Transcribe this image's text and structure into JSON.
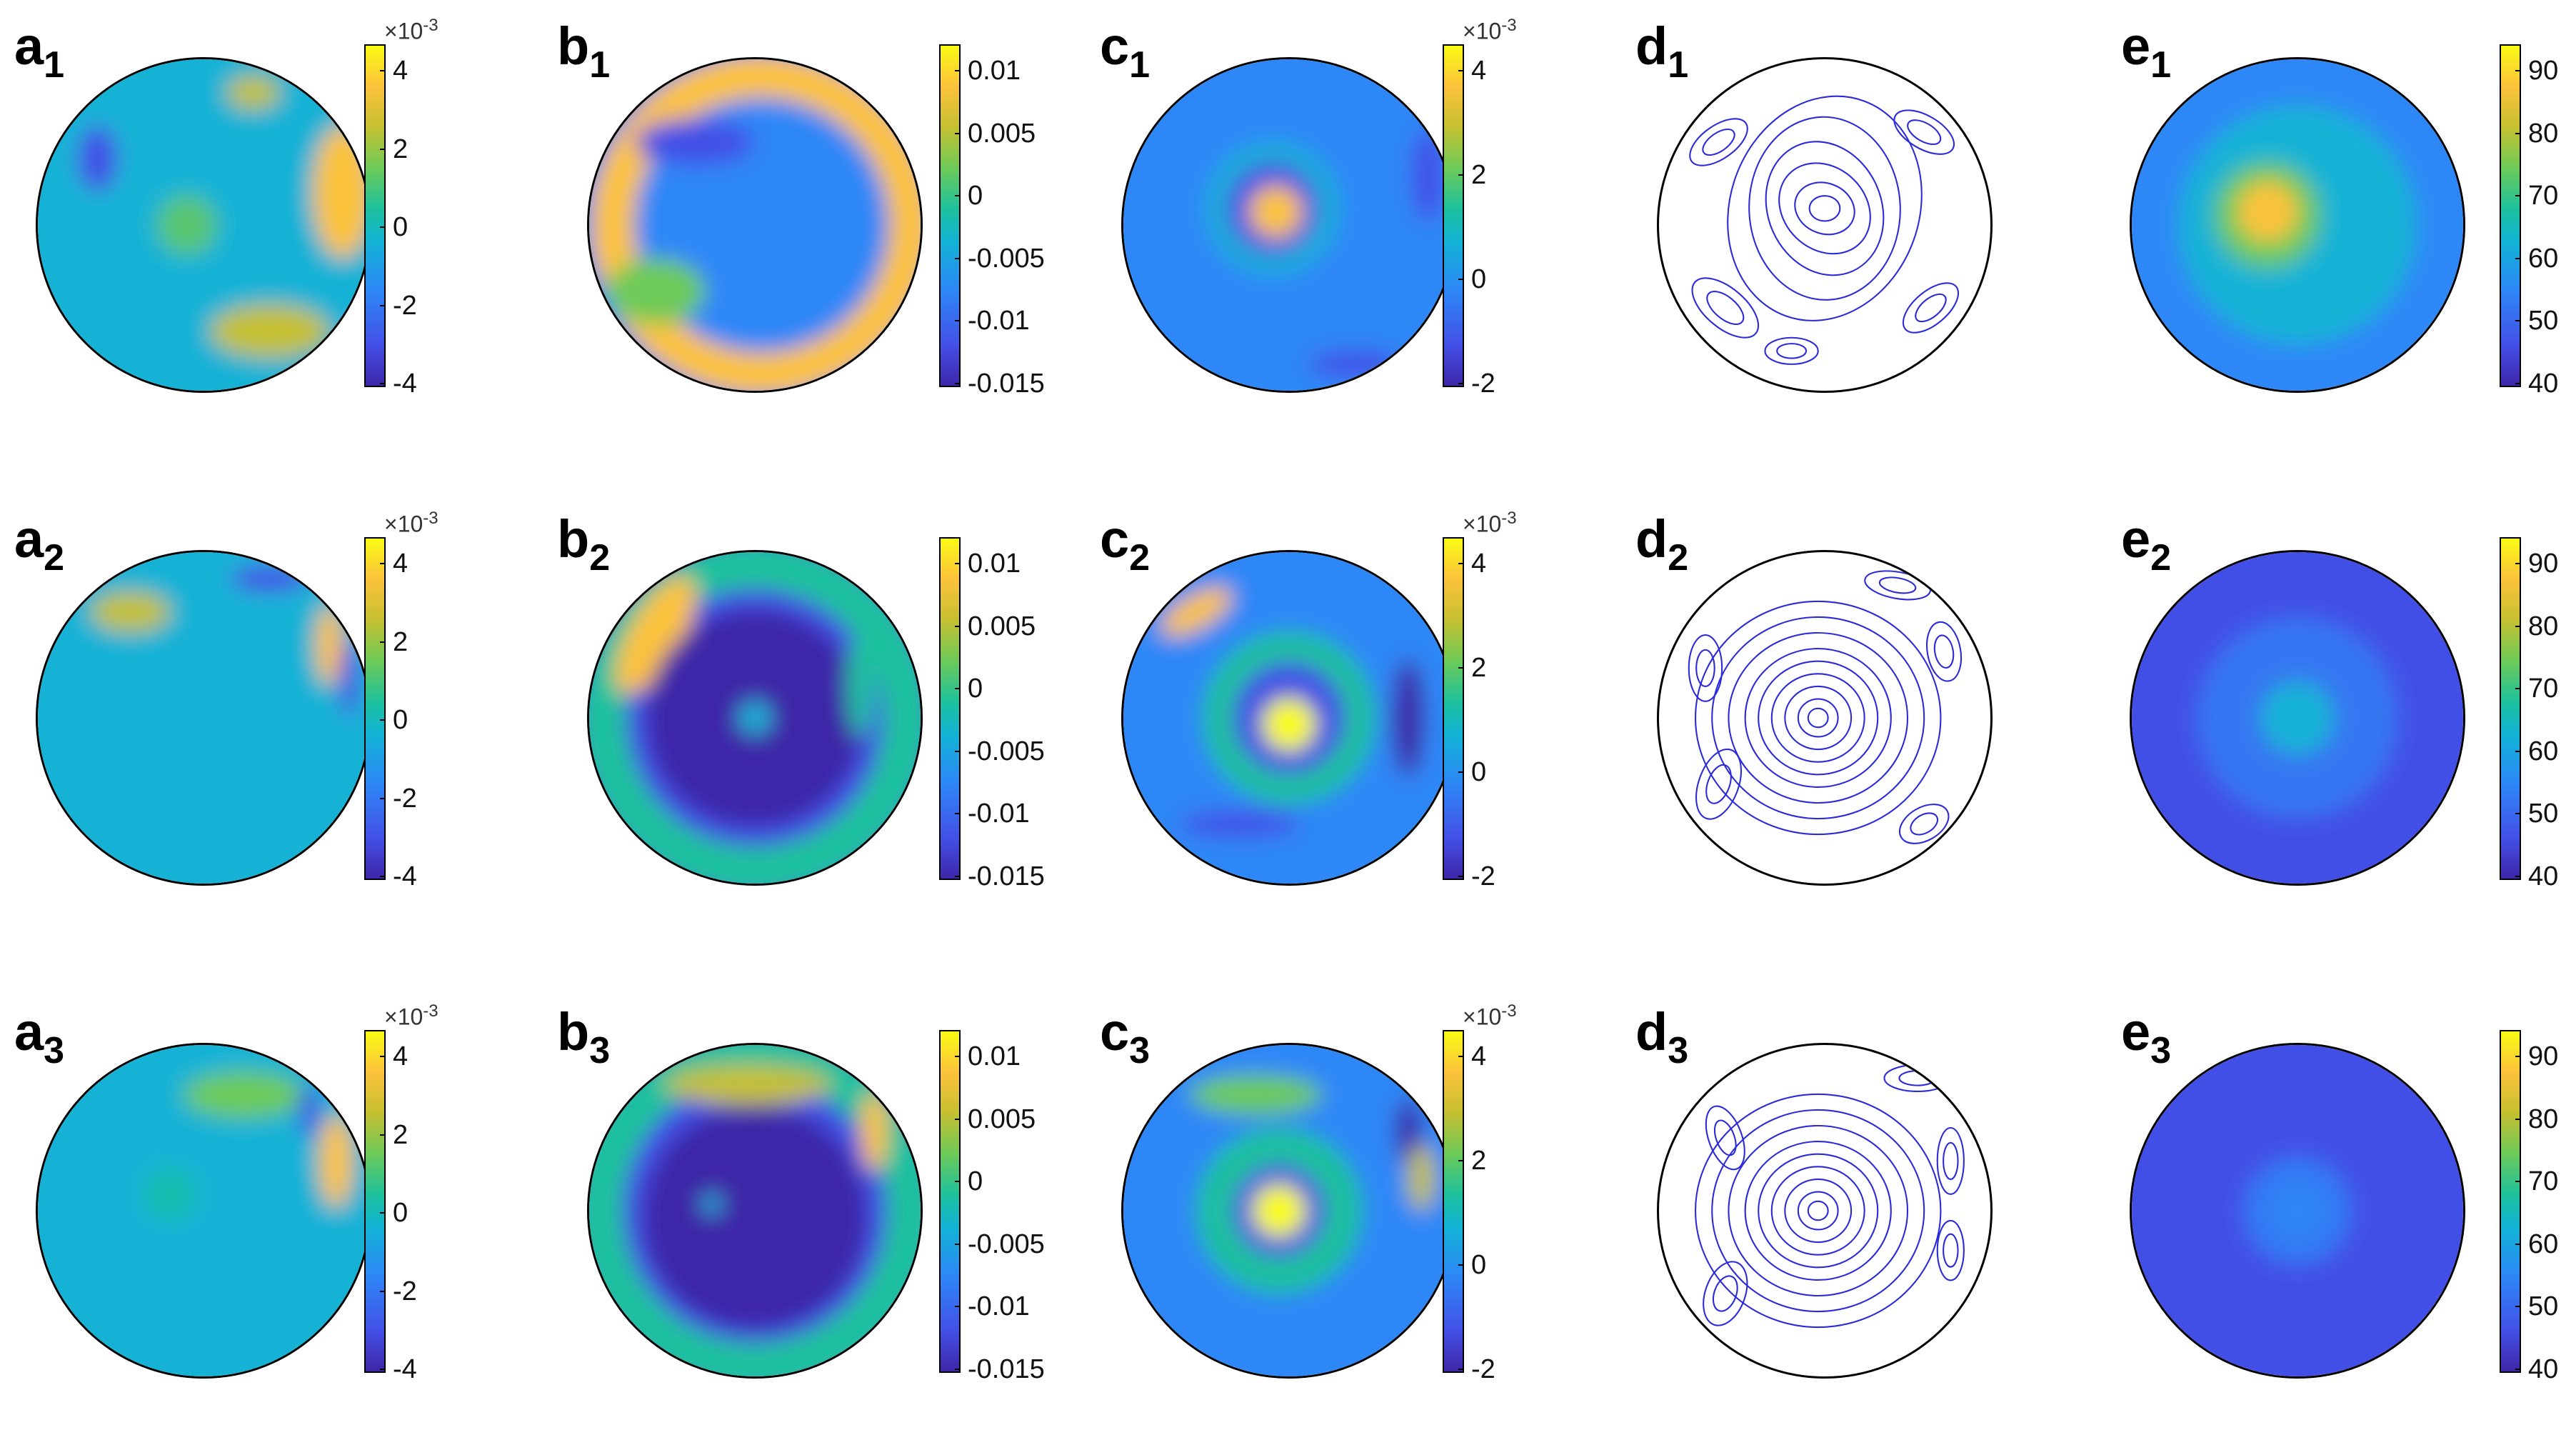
{
  "figure": {
    "rows": [
      [
        {
          "key": "a",
          "sub": "1",
          "kind": "field",
          "style": "a1",
          "scale": {
            "mult_base": "×10",
            "mult_exp": "-3",
            "ticks": [
              "4",
              "2",
              "0",
              "-2",
              "-4"
            ]
          }
        },
        {
          "key": "b",
          "sub": "1",
          "kind": "field",
          "style": "b1",
          "scale": {
            "mult_base": "",
            "mult_exp": "",
            "ticks": [
              "0.01",
              "0.005",
              "0",
              "-0.005",
              "-0.01",
              "-0.015"
            ]
          }
        },
        {
          "key": "c",
          "sub": "1",
          "kind": "field",
          "style": "c1",
          "scale": {
            "mult_base": "×10",
            "mult_exp": "-3",
            "ticks": [
              "4",
              "2",
              "0",
              "-2"
            ]
          }
        },
        {
          "key": "d",
          "sub": "1",
          "kind": "streamlines",
          "style": "d1"
        },
        {
          "key": "e",
          "sub": "1",
          "kind": "field",
          "style": "e1",
          "scale": {
            "mult_base": "",
            "mult_exp": "",
            "ticks": [
              "90",
              "80",
              "70",
              "60",
              "50",
              "40"
            ]
          }
        }
      ],
      [
        {
          "key": "a",
          "sub": "2",
          "kind": "field",
          "style": "a2",
          "scale": {
            "mult_base": "×10",
            "mult_exp": "-3",
            "ticks": [
              "4",
              "2",
              "0",
              "-2",
              "-4"
            ]
          }
        },
        {
          "key": "b",
          "sub": "2",
          "kind": "field",
          "style": "b2",
          "scale": {
            "mult_base": "",
            "mult_exp": "",
            "ticks": [
              "0.01",
              "0.005",
              "0",
              "-0.005",
              "-0.01",
              "-0.015"
            ]
          }
        },
        {
          "key": "c",
          "sub": "2",
          "kind": "field",
          "style": "c2",
          "scale": {
            "mult_base": "×10",
            "mult_exp": "-3",
            "ticks": [
              "4",
              "2",
              "0",
              "-2"
            ]
          }
        },
        {
          "key": "d",
          "sub": "2",
          "kind": "streamlines",
          "style": "d2"
        },
        {
          "key": "e",
          "sub": "2",
          "kind": "field",
          "style": "e2",
          "scale": {
            "mult_base": "",
            "mult_exp": "",
            "ticks": [
              "90",
              "80",
              "70",
              "60",
              "50",
              "40"
            ]
          }
        }
      ],
      [
        {
          "key": "a",
          "sub": "3",
          "kind": "field",
          "style": "a3",
          "scale": {
            "mult_base": "×10",
            "mult_exp": "-3",
            "ticks": [
              "4",
              "2",
              "0",
              "-2",
              "-4"
            ]
          }
        },
        {
          "key": "b",
          "sub": "3",
          "kind": "field",
          "style": "b3",
          "scale": {
            "mult_base": "",
            "mult_exp": "",
            "ticks": [
              "0.01",
              "0.005",
              "0",
              "-0.005",
              "-0.01",
              "-0.015"
            ]
          }
        },
        {
          "key": "c",
          "sub": "3",
          "kind": "field",
          "style": "c3",
          "scale": {
            "mult_base": "×10",
            "mult_exp": "-3",
            "ticks": [
              "4",
              "2",
              "0",
              "-2"
            ]
          }
        },
        {
          "key": "d",
          "sub": "3",
          "kind": "streamlines",
          "style": "d3"
        },
        {
          "key": "e",
          "sub": "3",
          "kind": "field",
          "style": "e3",
          "scale": {
            "mult_base": "",
            "mult_exp": "",
            "ticks": [
              "90",
              "80",
              "70",
              "60",
              "50",
              "40"
            ]
          }
        }
      ]
    ],
    "colors": {
      "colormap": [
        "#3e26a8",
        "#4350e7",
        "#2d87f7",
        "#12b2d6",
        "#1dc19d",
        "#6dca58",
        "#c5c031",
        "#fcc23b",
        "#f9fb15"
      ],
      "streamline": "#2b2bd9",
      "outline": "#000000"
    }
  }
}
